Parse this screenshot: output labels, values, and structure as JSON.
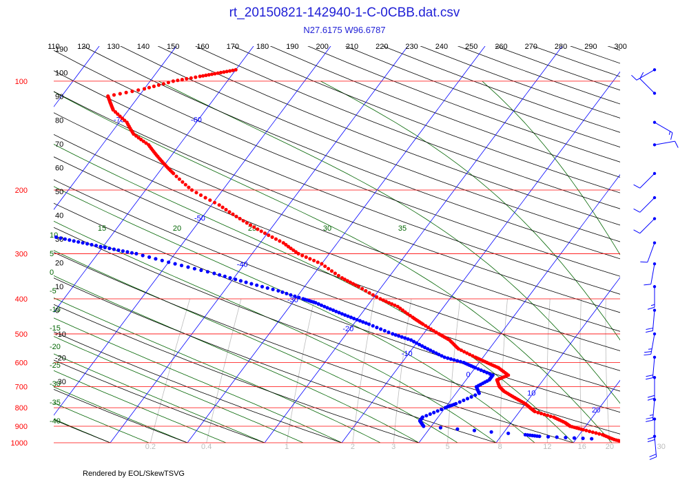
{
  "chart_data": {
    "type": "scatter",
    "title": "rt_20150821-142940-1-C-0CBB.dat.csv",
    "subtitle": "N27.6175 W96.6787",
    "footer": "Rendered by EOL/SkewTSVG",
    "theta_labels": [
      "110",
      "120",
      "130",
      "140",
      "150",
      "160",
      "170",
      "180",
      "190",
      "200",
      "210",
      "220",
      "230",
      "240",
      "250",
      "260",
      "270",
      "280",
      "290",
      "300"
    ],
    "pressure_labels": [
      "100",
      "200",
      "300",
      "400",
      "500",
      "600",
      "700",
      "800",
      "900",
      "1000"
    ],
    "pressure_levels": [
      100,
      200,
      300,
      400,
      500,
      600,
      700,
      800,
      900,
      1000
    ],
    "isotherm_labels": [
      {
        "t": -100,
        "text": "-100"
      },
      {
        "t": -90,
        "text": "-90"
      },
      {
        "t": -80,
        "text": "-80"
      },
      {
        "t": -70,
        "text": "-70"
      },
      {
        "t": -60,
        "text": "-60"
      },
      {
        "t": -50,
        "text": "-50"
      },
      {
        "t": -40,
        "text": "-40"
      },
      {
        "t": -30,
        "text": "-30"
      },
      {
        "t": -20,
        "text": "-20"
      },
      {
        "t": -10,
        "text": "-10"
      },
      {
        "t": 0,
        "text": "0"
      },
      {
        "t": 10,
        "text": "10"
      },
      {
        "t": 20,
        "text": "20"
      },
      {
        "t": 30,
        "text": "30"
      }
    ],
    "adiabat_side_labels": [
      "190",
      "100",
      "90",
      "80",
      "70",
      "60",
      "50",
      "40",
      "30",
      "20",
      "10",
      "0",
      "-10",
      "-20",
      "-30"
    ],
    "moist_labels_top": [
      "15",
      "20",
      "25",
      "30",
      "35"
    ],
    "moist_labels_left": [
      "10",
      "5",
      "0",
      "-5",
      "-10",
      "-15",
      "-20",
      "-25",
      "-30",
      "-35",
      "-40"
    ],
    "mixing_labels": [
      "0.2",
      "0.4",
      "1",
      "2",
      "3",
      "5",
      "8",
      "12",
      "16",
      "20",
      "30",
      "40"
    ],
    "temperature_profile": [
      {
        "p": 1000,
        "t": 27
      },
      {
        "p": 980,
        "t": 25
      },
      {
        "p": 950,
        "t": 23
      },
      {
        "p": 920,
        "t": 20
      },
      {
        "p": 900,
        "t": 18
      },
      {
        "p": 880,
        "t": 17
      },
      {
        "p": 850,
        "t": 15
      },
      {
        "p": 820,
        "t": 12
      },
      {
        "p": 800,
        "t": 11
      },
      {
        "p": 780,
        "t": 10
      },
      {
        "p": 750,
        "t": 8
      },
      {
        "p": 720,
        "t": 6
      },
      {
        "p": 700,
        "t": 5
      },
      {
        "p": 670,
        "t": 4
      },
      {
        "p": 650,
        "t": 5
      },
      {
        "p": 620,
        "t": 3
      },
      {
        "p": 600,
        "t": 1
      },
      {
        "p": 580,
        "t": -1
      },
      {
        "p": 550,
        "t": -4
      },
      {
        "p": 520,
        "t": -6
      },
      {
        "p": 500,
        "t": -8
      },
      {
        "p": 470,
        "t": -11
      },
      {
        "p": 450,
        "t": -13
      },
      {
        "p": 420,
        "t": -16
      },
      {
        "p": 400,
        "t": -19
      },
      {
        "p": 370,
        "t": -23
      },
      {
        "p": 350,
        "t": -26
      },
      {
        "p": 320,
        "t": -30
      },
      {
        "p": 300,
        "t": -34
      },
      {
        "p": 280,
        "t": -37
      },
      {
        "p": 260,
        "t": -41
      },
      {
        "p": 240,
        "t": -45
      },
      {
        "p": 220,
        "t": -49
      },
      {
        "p": 200,
        "t": -54
      },
      {
        "p": 180,
        "t": -58
      },
      {
        "p": 170,
        "t": -60
      },
      {
        "p": 160,
        "t": -62
      },
      {
        "p": 150,
        "t": -64
      },
      {
        "p": 140,
        "t": -67
      },
      {
        "p": 130,
        "t": -69
      },
      {
        "p": 120,
        "t": -72
      },
      {
        "p": 115,
        "t": -73
      },
      {
        "p": 110,
        "t": -74
      },
      {
        "p": 105,
        "t": -70
      },
      {
        "p": 100,
        "t": -67
      },
      {
        "p": 97,
        "t": -64
      },
      {
        "p": 95,
        "t": -62
      },
      {
        "p": 93,
        "t": -60
      }
    ],
    "dewpoint_profile": [
      {
        "p": 975,
        "t": 22
      },
      {
        "p": 960,
        "t": 15
      },
      {
        "p": 950,
        "t": 13
      },
      {
        "p": 900,
        "t": -1
      },
      {
        "p": 870,
        "t": -2
      },
      {
        "p": 850,
        "t": -2
      },
      {
        "p": 800,
        "t": 0
      },
      {
        "p": 780,
        "t": 1
      },
      {
        "p": 730,
        "t": 3
      },
      {
        "p": 700,
        "t": 2
      },
      {
        "p": 670,
        "t": 3
      },
      {
        "p": 650,
        "t": 3
      },
      {
        "p": 620,
        "t": 0
      },
      {
        "p": 600,
        "t": -2
      },
      {
        "p": 580,
        "t": -5
      },
      {
        "p": 550,
        "t": -8
      },
      {
        "p": 520,
        "t": -11
      },
      {
        "p": 500,
        "t": -14
      },
      {
        "p": 470,
        "t": -18
      },
      {
        "p": 450,
        "t": -21
      },
      {
        "p": 430,
        "t": -24
      },
      {
        "p": 410,
        "t": -27
      },
      {
        "p": 400,
        "t": -29
      },
      {
        "p": 380,
        "t": -33
      },
      {
        "p": 360,
        "t": -38
      },
      {
        "p": 340,
        "t": -43
      },
      {
        "p": 320,
        "t": -49
      },
      {
        "p": 300,
        "t": -55
      },
      {
        "p": 290,
        "t": -59
      },
      {
        "p": 280,
        "t": -63
      },
      {
        "p": 270,
        "t": -67
      },
      {
        "p": 260,
        "t": -72
      },
      {
        "p": 250,
        "t": -77
      },
      {
        "p": 240,
        "t": -82
      },
      {
        "p": 230,
        "t": -87
      }
    ],
    "wind_barbs": [
      {
        "p": 93,
        "dir": 240,
        "speed": 10
      },
      {
        "p": 108,
        "dir": 315,
        "speed": 12
      },
      {
        "p": 130,
        "dir": 120,
        "speed": 15
      },
      {
        "p": 150,
        "dir": 80,
        "speed": 10
      },
      {
        "p": 180,
        "dir": 225,
        "speed": 10
      },
      {
        "p": 210,
        "dir": 225,
        "speed": 10
      },
      {
        "p": 240,
        "dir": 225,
        "speed": 10
      },
      {
        "p": 280,
        "dir": 200,
        "speed": 10
      },
      {
        "p": 320,
        "dir": 190,
        "speed": 10
      },
      {
        "p": 370,
        "dir": 180,
        "speed": 15
      },
      {
        "p": 430,
        "dir": 185,
        "speed": 20
      },
      {
        "p": 500,
        "dir": 190,
        "speed": 25
      },
      {
        "p": 580,
        "dir": 185,
        "speed": 20
      },
      {
        "p": 660,
        "dir": 180,
        "speed": 20
      },
      {
        "p": 760,
        "dir": 185,
        "speed": 25
      },
      {
        "p": 860,
        "dir": 180,
        "speed": 20
      },
      {
        "p": 960,
        "dir": 175,
        "speed": 20
      }
    ],
    "colors": {
      "temperature": "#ff0000",
      "dewpoint": "#0000ff",
      "isobar": "#ff0000",
      "isotherm": "#0000ff",
      "dry_adiabat": "#000000",
      "moist_adiabat": "#006400",
      "mixing_ratio": "#bbbbbb",
      "wind": "#0000ff",
      "title": "#1f1fd6"
    }
  }
}
